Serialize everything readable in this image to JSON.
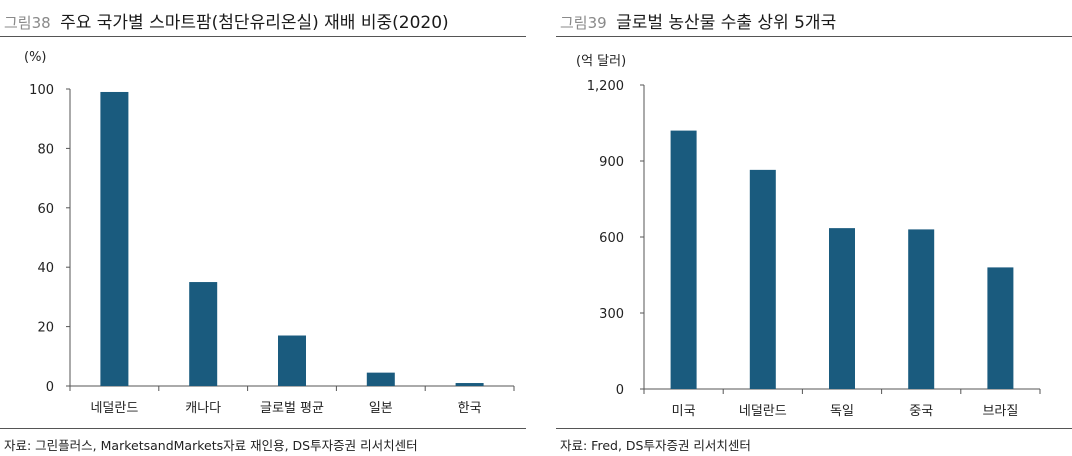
{
  "colors": {
    "bar": "#1a5b7e",
    "axis": "#555555",
    "rule": "#555555"
  },
  "charts": [
    {
      "figure_number": "그림38",
      "title": "주요 국가별 스마트팜(첨단유리온실) 재배 비중(2020)",
      "unit": "(%)",
      "source": "자료: 그린플러스, MarketsandMarkets자료 재인용, DS투자증권 리서치센터"
    },
    {
      "figure_number": "그림39",
      "title": "글로벌 농산물 수출 상위 5개국",
      "unit": "(억 달러)",
      "source": "자료: Fred, DS투자증권 리서치센터"
    }
  ],
  "chart_data": [
    {
      "type": "bar",
      "title": "주요 국가별 스마트팜(첨단유리온실) 재배 비중(2020)",
      "ylabel": "(%)",
      "categories": [
        "네덜란드",
        "캐나다",
        "글로벌 평균",
        "일본",
        "한국"
      ],
      "values": [
        99,
        35,
        17,
        4.5,
        1
      ],
      "ylim": [
        0,
        100
      ],
      "yticks": [
        0,
        20,
        40,
        60,
        80,
        100
      ],
      "ytick_labels": [
        "0",
        "20",
        "40",
        "60",
        "80",
        "100"
      ],
      "grid": false
    },
    {
      "type": "bar",
      "title": "글로벌 농산물 수출 상위 5개국",
      "ylabel": "(억 달러)",
      "categories": [
        "미국",
        "네덜란드",
        "독일",
        "중국",
        "브라질"
      ],
      "values": [
        1020,
        865,
        635,
        630,
        480
      ],
      "ylim": [
        0,
        1200
      ],
      "yticks": [
        0,
        300,
        600,
        900,
        1200
      ],
      "ytick_labels": [
        "0",
        "300",
        "600",
        "900",
        "1,200"
      ],
      "grid": false
    }
  ]
}
